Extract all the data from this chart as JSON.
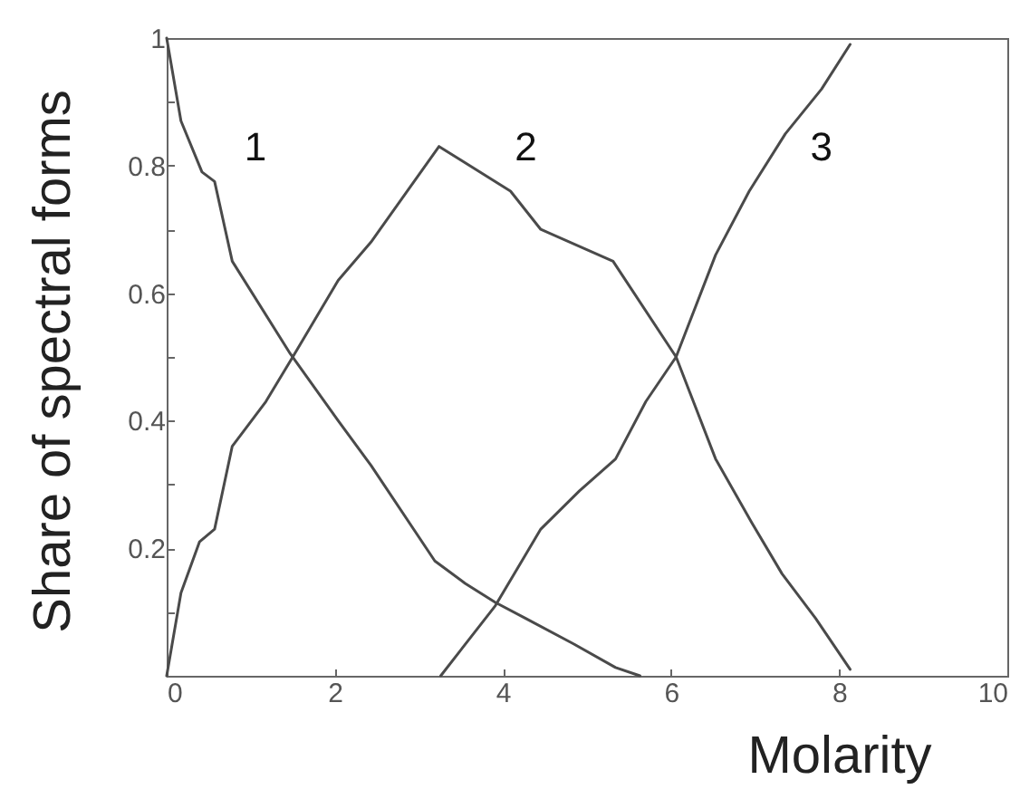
{
  "chart_data": {
    "type": "line",
    "xlabel": "Molarity",
    "ylabel": "Share of spectral forms",
    "xlim": [
      0,
      10
    ],
    "ylim": [
      0,
      1
    ],
    "xticks": [
      0,
      2,
      4,
      6,
      8,
      10
    ],
    "yticks": [
      {
        "value": 0.1,
        "label": null
      },
      0.2,
      {
        "value": 0.3,
        "label": null
      },
      0.4,
      {
        "value": 0.5,
        "label": null
      },
      0.6,
      {
        "value": 0.7,
        "label": null
      },
      0.8,
      {
        "value": 0.9,
        "label": null
      },
      1
    ],
    "series": [
      {
        "name": "1",
        "color": "#4a4a4a",
        "x": [
          0,
          0.17,
          0.42,
          0.57,
          0.78,
          1.47,
          2.04,
          2.43,
          3.19,
          3.55,
          3.91,
          4.27,
          4.84,
          5.34,
          5.63
        ],
        "values": [
          1,
          0.87,
          0.79,
          0.775,
          0.65,
          0.505,
          0.4,
          0.33,
          0.18,
          0.145,
          0.115,
          0.09,
          0.05,
          0.013,
          0
        ]
      },
      {
        "name": "2",
        "color": "#4a4a4a",
        "x": [
          0,
          0.17,
          0.39,
          0.57,
          0.78,
          1.18,
          1.5,
          2.04,
          2.43,
          3.24,
          4.09,
          4.45,
          5.31,
          6.06,
          6.53,
          6.96,
          7.32,
          7.72,
          8.13
        ],
        "values": [
          0,
          0.13,
          0.21,
          0.23,
          0.36,
          0.43,
          0.5,
          0.62,
          0.68,
          0.83,
          0.76,
          0.7,
          0.65,
          0.5,
          0.34,
          0.24,
          0.16,
          0.09,
          0.01
        ]
      },
      {
        "name": "3",
        "color": "#4a4a4a",
        "x": [
          3.26,
          3.91,
          4.27,
          4.45,
          4.91,
          5.34,
          5.7,
          6.06,
          6.53,
          6.93,
          7.36,
          7.79,
          8.13
        ],
        "values": [
          0,
          0.11,
          0.19,
          0.23,
          0.29,
          0.34,
          0.43,
          0.5,
          0.66,
          0.76,
          0.85,
          0.92,
          0.99
        ]
      }
    ]
  }
}
